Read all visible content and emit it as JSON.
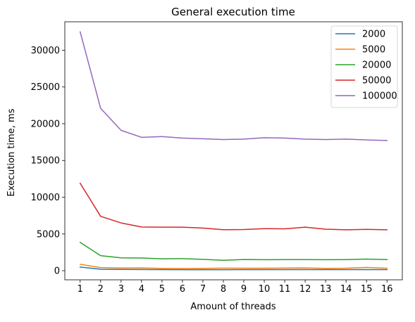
{
  "chart_data": {
    "type": "line",
    "title": "General execution time",
    "xlabel": "Amount of threads",
    "ylabel": "Execution time, ms",
    "x": [
      1,
      2,
      3,
      4,
      5,
      6,
      7,
      8,
      9,
      10,
      11,
      12,
      13,
      14,
      15,
      16
    ],
    "xlim": [
      0.25,
      16.75
    ],
    "ylim": [
      -1240,
      33870
    ],
    "yticks": [
      0,
      5000,
      10000,
      15000,
      20000,
      25000,
      30000
    ],
    "grid": false,
    "legend_position": "top-right",
    "series": [
      {
        "name": "2000",
        "color": "#1f77b4",
        "values": [
          500,
          200,
          170,
          160,
          150,
          140,
          140,
          140,
          150,
          150,
          150,
          150,
          150,
          150,
          150,
          150
        ]
      },
      {
        "name": "5000",
        "color": "#ff7f0e",
        "values": [
          870,
          420,
          360,
          380,
          320,
          300,
          320,
          350,
          340,
          340,
          360,
          380,
          320,
          340,
          450,
          330
        ]
      },
      {
        "name": "20000",
        "color": "#2ca02c",
        "values": [
          3850,
          2050,
          1750,
          1720,
          1620,
          1640,
          1550,
          1420,
          1520,
          1500,
          1510,
          1510,
          1500,
          1510,
          1580,
          1510
        ]
      },
      {
        "name": "50000",
        "color": "#d62728",
        "values": [
          11900,
          7400,
          6500,
          5950,
          5920,
          5920,
          5800,
          5580,
          5600,
          5720,
          5700,
          5920,
          5650,
          5560,
          5620,
          5560
        ]
      },
      {
        "name": "100000",
        "color": "#9467bd",
        "values": [
          32500,
          22100,
          19100,
          18150,
          18250,
          18050,
          17950,
          17850,
          17900,
          18100,
          18050,
          17900,
          17850,
          17900,
          17800,
          17720
        ]
      }
    ]
  }
}
